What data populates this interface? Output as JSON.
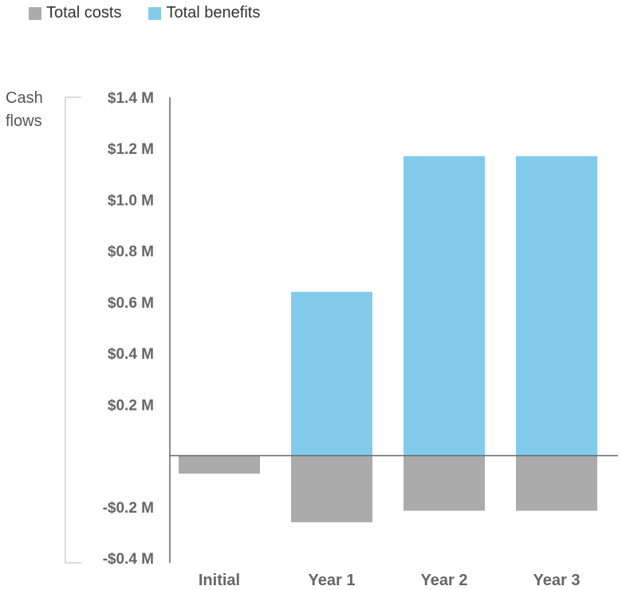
{
  "chart_data": {
    "type": "bar",
    "stacked": true,
    "categories": [
      "Initial",
      "Year 1",
      "Year 2",
      "Year 3"
    ],
    "series": [
      {
        "name": "Total costs",
        "color": "#ababab",
        "values": [
          -0.07,
          -0.26,
          -0.215,
          -0.215
        ]
      },
      {
        "name": "Total benefits",
        "color": "#82cbeb",
        "values": [
          0,
          0.64,
          1.17,
          1.17
        ]
      }
    ],
    "ylabel": "Cash flows",
    "ylim": [
      -0.4,
      1.4
    ],
    "yticks": [
      1.4,
      1.2,
      1.0,
      0.8,
      0.6,
      0.4,
      0.2,
      -0.2,
      -0.4
    ],
    "ytick_labels": [
      "$1.4 M",
      "$1.2 M",
      "$1.0 M",
      "$0.8 M",
      "$0.6 M",
      "$0.4 M",
      "$0.2 M",
      "-$0.2 M",
      "-$0.4 M"
    ],
    "legend_position": "top-left",
    "grid": false
  }
}
